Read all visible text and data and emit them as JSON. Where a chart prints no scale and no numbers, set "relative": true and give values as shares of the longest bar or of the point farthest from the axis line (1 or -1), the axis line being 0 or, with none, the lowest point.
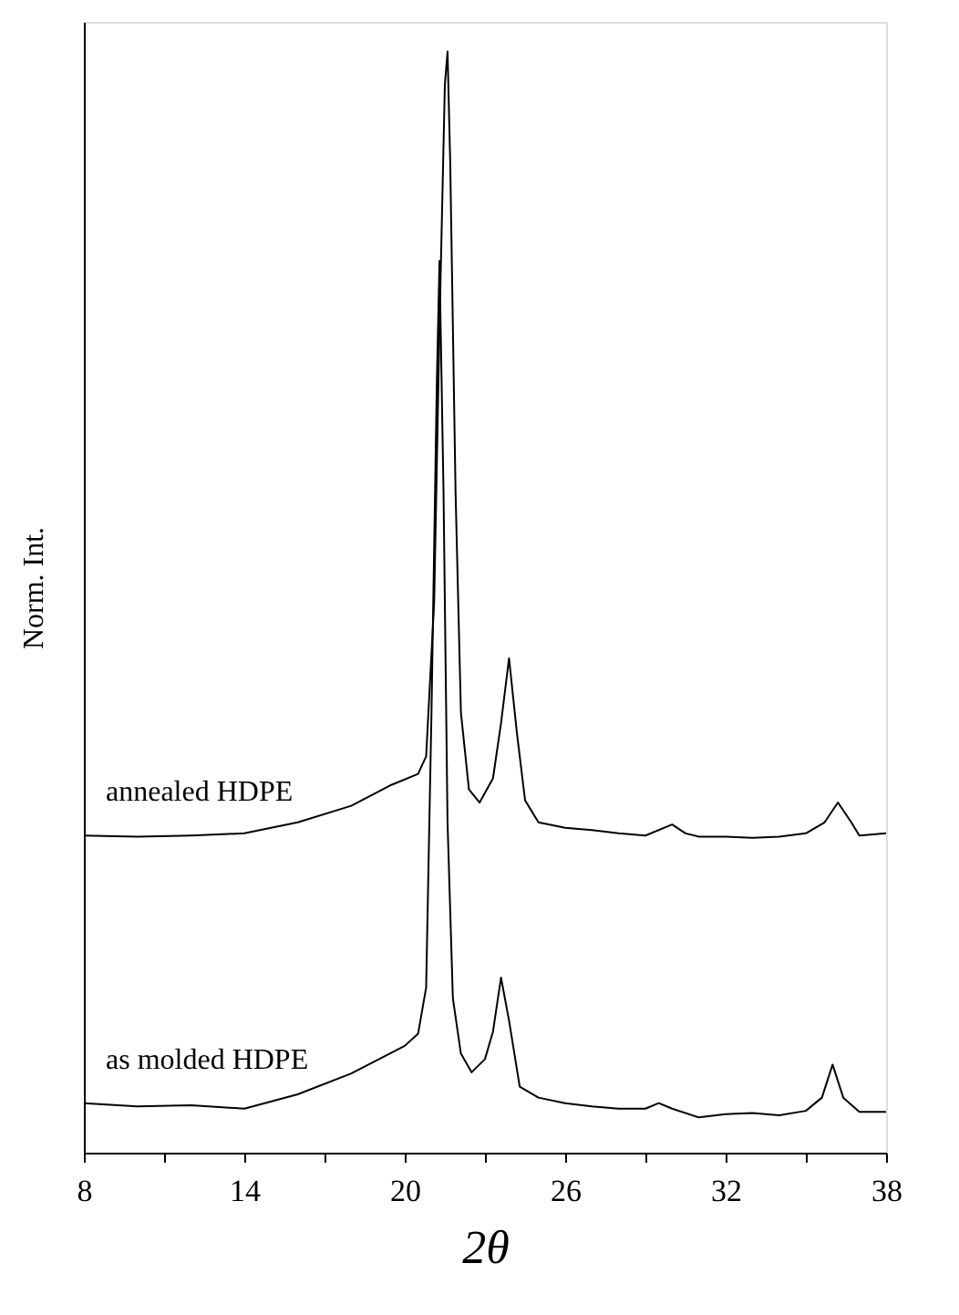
{
  "chart_data": {
    "type": "line",
    "relative": true,
    "xlabel": "2θ",
    "ylabel": "Norm. Int.",
    "xlim": [
      8,
      38
    ],
    "xticks": [
      8,
      {
        "value": 11,
        "label": null
      },
      14,
      {
        "value": 17,
        "label": null
      },
      20,
      {
        "value": 23,
        "label": null
      },
      26,
      {
        "value": 29,
        "label": null
      },
      32,
      {
        "value": 35,
        "label": null
      },
      38
    ],
    "grid": false,
    "marker": "none",
    "line_style": "solid",
    "series": [
      {
        "name": "annealed HDPE",
        "color": "#000000",
        "x": [
          8,
          10,
          12,
          14,
          16,
          18,
          19.5,
          20.5,
          20.8,
          21.1,
          21.3,
          21.5,
          21.6,
          21.7,
          21.9,
          22.1,
          22.4,
          22.8,
          23.3,
          23.6,
          23.9,
          24.2,
          24.5,
          25,
          26,
          27,
          28,
          29,
          30,
          30.5,
          31,
          32,
          33,
          34,
          35,
          35.7,
          36.2,
          36.7,
          37,
          38
        ],
        "values": [
          0.288,
          0.287,
          0.288,
          0.29,
          0.3,
          0.315,
          0.334,
          0.344,
          0.36,
          0.5,
          0.75,
          0.97,
          1.0,
          0.9,
          0.6,
          0.4,
          0.33,
          0.318,
          0.34,
          0.39,
          0.449,
          0.38,
          0.32,
          0.3,
          0.295,
          0.293,
          0.29,
          0.288,
          0.298,
          0.29,
          0.287,
          0.287,
          0.286,
          0.287,
          0.29,
          0.3,
          0.318,
          0.3,
          0.288,
          0.29
        ]
      },
      {
        "name": "as molded HDPE",
        "color": "#000000",
        "x": [
          8,
          10,
          12,
          14,
          16,
          18,
          20,
          20.5,
          20.8,
          21.0,
          21.2,
          21.3,
          21.45,
          21.6,
          21.8,
          22.1,
          22.5,
          23.0,
          23.3,
          23.6,
          23.9,
          24.3,
          25,
          26,
          27,
          28,
          29,
          29.5,
          30,
          31,
          32,
          33,
          34,
          35,
          35.6,
          36.0,
          36.4,
          37,
          38
        ],
        "values": [
          0.045,
          0.042,
          0.043,
          0.04,
          0.053,
          0.072,
          0.097,
          0.108,
          0.15,
          0.4,
          0.7,
          0.81,
          0.6,
          0.3,
          0.14,
          0.09,
          0.073,
          0.085,
          0.11,
          0.159,
          0.12,
          0.06,
          0.05,
          0.045,
          0.042,
          0.04,
          0.04,
          0.045,
          0.04,
          0.032,
          0.035,
          0.036,
          0.034,
          0.038,
          0.05,
          0.08,
          0.05,
          0.037,
          0.037
        ]
      }
    ]
  }
}
